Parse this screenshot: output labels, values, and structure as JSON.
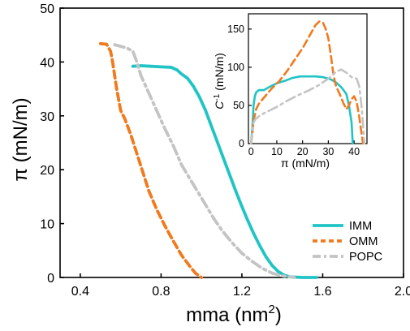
{
  "chart_data": [
    {
      "type": "line",
      "xlabel": "mma (nm",
      "xlabel_sup": "2",
      "xlabel_close": ")",
      "ylabel": "π (mN/m)",
      "xlim": [
        0.3,
        2.0
      ],
      "ylim": [
        0,
        50
      ],
      "xticks": [
        "0.4",
        "0.8",
        "1.2",
        "1.6",
        "2.0"
      ],
      "yticks": [
        "0",
        "10",
        "20",
        "30",
        "40",
        "50"
      ],
      "legend_position": "bottom-right",
      "series": [
        {
          "name": "IMM",
          "color": "#20c4c4",
          "style": "solid",
          "points": [
            [
              0.66,
              39.2
            ],
            [
              0.7,
              39.3
            ],
            [
              0.75,
              39.2
            ],
            [
              0.8,
              39.1
            ],
            [
              0.85,
              39.0
            ],
            [
              0.88,
              38.5
            ],
            [
              0.9,
              37.8
            ],
            [
              0.93,
              37.0
            ],
            [
              0.96,
              35.5
            ],
            [
              0.99,
              33.5
            ],
            [
              1.02,
              31.0
            ],
            [
              1.05,
              28.0
            ],
            [
              1.08,
              25.0
            ],
            [
              1.11,
              22.0
            ],
            [
              1.14,
              19.0
            ],
            [
              1.17,
              16.0
            ],
            [
              1.2,
              13.2
            ],
            [
              1.23,
              10.5
            ],
            [
              1.26,
              8.0
            ],
            [
              1.29,
              5.8
            ],
            [
              1.32,
              3.8
            ],
            [
              1.35,
              2.2
            ],
            [
              1.38,
              1.1
            ],
            [
              1.41,
              0.4
            ],
            [
              1.44,
              0.1
            ],
            [
              1.5,
              0.0
            ],
            [
              1.57,
              0.0
            ]
          ]
        },
        {
          "name": "OMM",
          "color": "#f07a1e",
          "style": "dash",
          "points": [
            [
              0.5,
              43.4
            ],
            [
              0.53,
              43.3
            ],
            [
              0.55,
              42.0
            ],
            [
              0.56,
              40.0
            ],
            [
              0.57,
              37.5
            ],
            [
              0.58,
              35.0
            ],
            [
              0.59,
              33.0
            ],
            [
              0.6,
              31.0
            ],
            [
              0.62,
              29.5
            ],
            [
              0.65,
              26.5
            ],
            [
              0.68,
              23.0
            ],
            [
              0.71,
              19.5
            ],
            [
              0.74,
              16.0
            ],
            [
              0.78,
              12.5
            ],
            [
              0.82,
              9.5
            ],
            [
              0.86,
              6.8
            ],
            [
              0.9,
              4.2
            ],
            [
              0.94,
              2.2
            ],
            [
              0.97,
              0.8
            ],
            [
              1.0,
              0.0
            ]
          ]
        },
        {
          "name": "POPC",
          "color": "#c4c4c4",
          "style": "dashdot",
          "points": [
            [
              0.57,
              43.2
            ],
            [
              0.6,
              42.9
            ],
            [
              0.63,
              42.6
            ],
            [
              0.66,
              42.0
            ],
            [
              0.68,
              40.0
            ],
            [
              0.7,
              37.5
            ],
            [
              0.73,
              35.0
            ],
            [
              0.76,
              32.5
            ],
            [
              0.79,
              30.0
            ],
            [
              0.82,
              27.5
            ],
            [
              0.86,
              24.5
            ],
            [
              0.9,
              21.0
            ],
            [
              0.94,
              18.5
            ],
            [
              0.98,
              16.0
            ],
            [
              1.02,
              13.5
            ],
            [
              1.06,
              11.0
            ],
            [
              1.1,
              8.8
            ],
            [
              1.15,
              6.5
            ],
            [
              1.2,
              4.5
            ],
            [
              1.25,
              3.0
            ],
            [
              1.3,
              1.7
            ],
            [
              1.35,
              0.8
            ],
            [
              1.4,
              0.3
            ],
            [
              1.46,
              0.0
            ]
          ]
        }
      ]
    },
    {
      "type": "line",
      "xlabel": "π (mN/m)",
      "ylabel_prefix": "C",
      "ylabel_sup": "-1",
      "ylabel_suffix": " (mN/m)",
      "xlim": [
        -1,
        45
      ],
      "ylim": [
        0,
        170
      ],
      "xticks": [
        "0",
        "10",
        "20",
        "30",
        "40"
      ],
      "yticks": [
        "0",
        "50",
        "100",
        "150"
      ],
      "series": [
        {
          "name": "IMM",
          "color": "#20c4c4",
          "style": "solid",
          "points": [
            [
              0,
              0
            ],
            [
              0.5,
              20
            ],
            [
              1,
              50
            ],
            [
              1.5,
              62
            ],
            [
              2,
              67
            ],
            [
              3,
              70
            ],
            [
              5,
              70
            ],
            [
              7,
              74
            ],
            [
              10,
              79
            ],
            [
              13,
              82
            ],
            [
              16,
              86
            ],
            [
              19,
              88
            ],
            [
              22,
              88
            ],
            [
              25,
              88
            ],
            [
              28,
              87
            ],
            [
              31,
              84
            ],
            [
              33,
              80
            ],
            [
              35,
              74
            ],
            [
              37,
              65
            ],
            [
              38,
              50
            ],
            [
              39,
              28
            ],
            [
              39.5,
              0
            ]
          ]
        },
        {
          "name": "OMM",
          "color": "#f07a1e",
          "style": "dash",
          "points": [
            [
              0,
              0
            ],
            [
              0.5,
              12
            ],
            [
              1,
              30
            ],
            [
              2,
              45
            ],
            [
              3,
              52
            ],
            [
              5,
              60
            ],
            [
              8,
              72
            ],
            [
              11,
              82
            ],
            [
              14,
              95
            ],
            [
              17,
              110
            ],
            [
              20,
              125
            ],
            [
              23,
              143
            ],
            [
              25,
              155
            ],
            [
              26.5,
              160
            ],
            [
              28,
              158
            ],
            [
              29,
              150
            ],
            [
              30,
              138
            ],
            [
              31,
              115
            ],
            [
              32,
              90
            ],
            [
              33,
              75
            ],
            [
              34,
              68
            ],
            [
              35,
              60
            ],
            [
              36,
              52
            ],
            [
              37,
              45
            ],
            [
              38,
              50
            ],
            [
              39,
              58
            ],
            [
              40,
              62
            ],
            [
              41,
              55
            ],
            [
              42,
              35
            ],
            [
              43,
              10
            ],
            [
              43.5,
              0
            ]
          ]
        },
        {
          "name": "POPC",
          "color": "#c4c4c4",
          "style": "dashdot",
          "points": [
            [
              0,
              0
            ],
            [
              0.5,
              14
            ],
            [
              1,
              28
            ],
            [
              2,
              33
            ],
            [
              4,
              38
            ],
            [
              7,
              43
            ],
            [
              10,
              48
            ],
            [
              14,
              56
            ],
            [
              18,
              63
            ],
            [
              22,
              69
            ],
            [
              26,
              76
            ],
            [
              30,
              85
            ],
            [
              33,
              94
            ],
            [
              35,
              97
            ],
            [
              37,
              93
            ],
            [
              39,
              87
            ],
            [
              41,
              85
            ],
            [
              42,
              75
            ],
            [
              43,
              45
            ],
            [
              44,
              0
            ]
          ]
        }
      ]
    }
  ]
}
